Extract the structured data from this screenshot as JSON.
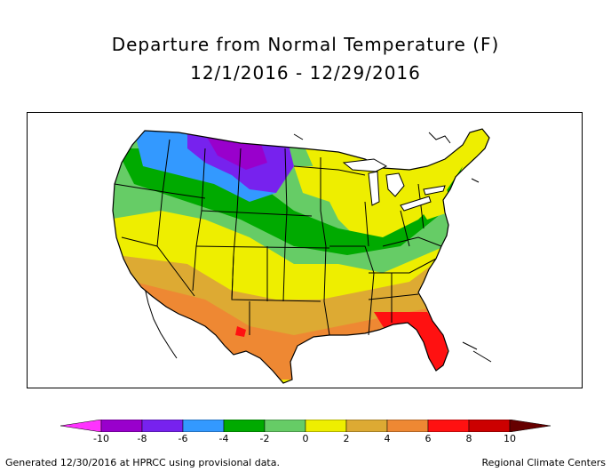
{
  "title_line1": "Departure from Normal Temperature (F)",
  "title_line2": "12/1/2016 - 12/29/2016",
  "legend": {
    "ticks": [
      "-10",
      "-8",
      "-6",
      "-4",
      "-2",
      "0",
      "2",
      "4",
      "6",
      "8",
      "10"
    ],
    "colors": [
      "#ff33ff",
      "#9900cc",
      "#7722ee",
      "#3399ff",
      "#00aa00",
      "#66cc66",
      "#eeee00",
      "#ddaa33",
      "#ee8833",
      "#ff1111",
      "#cc0000",
      "#660000"
    ]
  },
  "footer_left": "Generated 12/30/2016 at HPRCC using provisional data.",
  "footer_right": "Regional Climate Centers"
}
